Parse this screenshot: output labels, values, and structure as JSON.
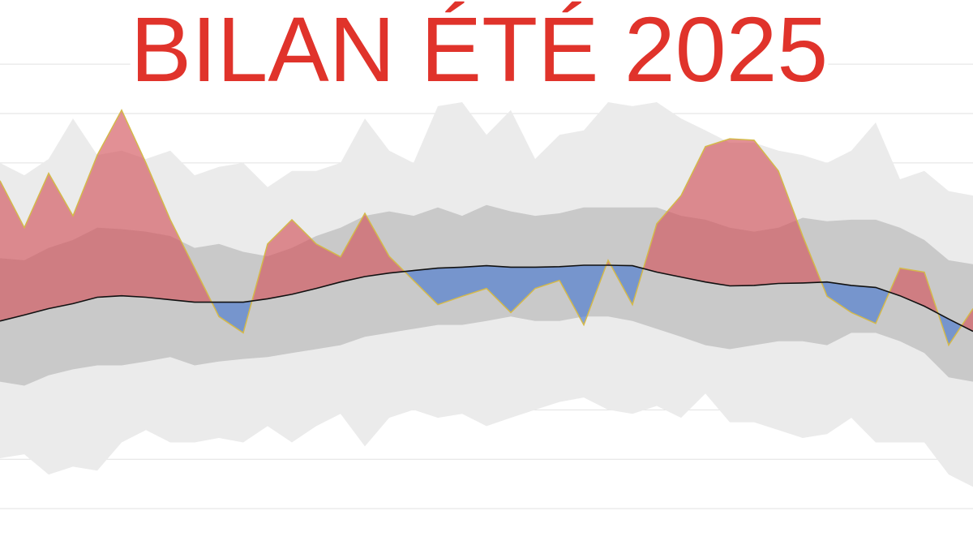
{
  "chart_data": {
    "type": "anomaly-band",
    "title": "BILAN ÉTÉ 2025",
    "ylim": [
      -1,
      10.3
    ],
    "yticks": [
      0,
      1,
      2,
      3,
      4,
      5,
      6,
      7,
      8,
      9
    ],
    "grid": true,
    "outer_band": {
      "color": "#ebebeb",
      "low": [
        1.02,
        1.1,
        0.69,
        0.85,
        0.77,
        1.34,
        1.59,
        1.34,
        1.34,
        1.43,
        1.34,
        1.67,
        1.34,
        1.67,
        1.92,
        1.26,
        1.84,
        2.0,
        1.84,
        1.92,
        1.67,
        1.84,
        2.0,
        2.16,
        2.25,
        2.0,
        1.92,
        2.08,
        1.84,
        2.33,
        1.75,
        1.75,
        1.59,
        1.43,
        1.51,
        1.84,
        1.34,
        1.34,
        1.34,
        0.69,
        0.44
      ],
      "high": [
        7.0,
        6.75,
        7.08,
        7.9,
        7.16,
        7.25,
        7.08,
        7.25,
        6.75,
        6.92,
        7.0,
        6.51,
        6.84,
        6.84,
        7.0,
        7.9,
        7.25,
        7.0,
        8.15,
        8.23,
        7.57,
        8.07,
        7.08,
        7.57,
        7.66,
        8.23,
        8.15,
        8.23,
        7.9,
        7.66,
        7.41,
        7.41,
        7.25,
        7.16,
        7.0,
        7.25,
        7.82,
        6.67,
        6.84,
        6.43,
        6.34
      ]
    },
    "inner_band": {
      "color": "#c9c9c9",
      "low": [
        2.57,
        2.49,
        2.7,
        2.82,
        2.9,
        2.9,
        2.98,
        3.07,
        2.9,
        2.98,
        3.03,
        3.07,
        3.15,
        3.23,
        3.31,
        3.48,
        3.56,
        3.64,
        3.72,
        3.72,
        3.8,
        3.89,
        3.8,
        3.8,
        3.89,
        3.89,
        3.8,
        3.64,
        3.48,
        3.31,
        3.23,
        3.31,
        3.39,
        3.39,
        3.31,
        3.56,
        3.56,
        3.39,
        3.15,
        2.66,
        2.57
      ],
      "high": [
        5.07,
        5.03,
        5.28,
        5.44,
        5.69,
        5.66,
        5.61,
        5.52,
        5.28,
        5.36,
        5.2,
        5.11,
        5.28,
        5.52,
        5.69,
        5.93,
        6.02,
        5.93,
        6.1,
        5.93,
        6.15,
        6.02,
        5.93,
        5.98,
        6.1,
        6.1,
        6.1,
        6.1,
        5.93,
        5.85,
        5.69,
        5.61,
        5.69,
        5.89,
        5.82,
        5.85,
        5.85,
        5.69,
        5.44,
        5.03,
        4.95
      ]
    },
    "normal": {
      "color": "#111111",
      "values": [
        3.8,
        3.92,
        4.05,
        4.15,
        4.28,
        4.31,
        4.28,
        4.23,
        4.18,
        4.18,
        4.18,
        4.25,
        4.34,
        4.46,
        4.59,
        4.7,
        4.77,
        4.82,
        4.87,
        4.89,
        4.92,
        4.89,
        4.89,
        4.9,
        4.93,
        4.93,
        4.92,
        4.79,
        4.69,
        4.59,
        4.51,
        4.52,
        4.56,
        4.57,
        4.59,
        4.52,
        4.48,
        4.31,
        4.1,
        3.84,
        3.59
      ]
    },
    "observed": {
      "color": "#d4b94a",
      "above_color": "#d2555c",
      "below_color": "#4a7ad0",
      "values": [
        6.64,
        5.69,
        6.79,
        5.93,
        7.16,
        8.07,
        7.0,
        5.85,
        4.87,
        3.89,
        3.56,
        5.36,
        5.85,
        5.36,
        5.1,
        5.98,
        5.11,
        4.62,
        4.13,
        4.3,
        4.46,
        3.97,
        4.46,
        4.62,
        3.72,
        5.03,
        4.13,
        5.77,
        6.34,
        7.33,
        7.49,
        7.46,
        6.84,
        5.52,
        4.3,
        3.97,
        3.75,
        4.87,
        4.79,
        3.31,
        4.05
      ]
    }
  }
}
